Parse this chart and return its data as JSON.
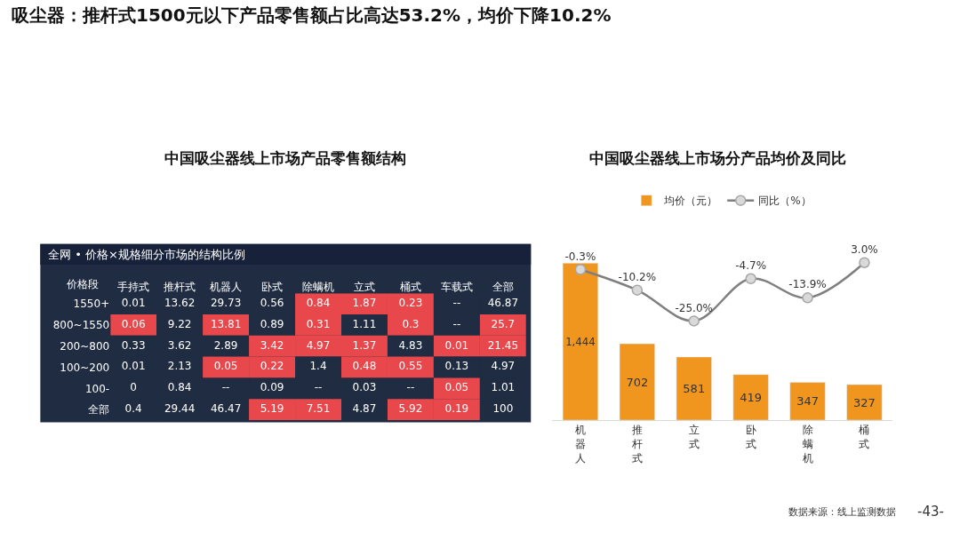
{
  "chart_data": [
    {
      "type": "heatmap",
      "title": "中国吸尘器线上市场产品零售额结构",
      "subtitle": "全网 • 价格×规格细分市场的结构比例",
      "ylabel": "价格段",
      "annotations": [
        "吸尘器：推杆式1500元以下产品零售额占比高达53.2%，均价下降10.2%"
      ],
      "categories": [
        "手持式",
        "推杆式",
        "机器人",
        "卧式",
        "除螨机",
        "立式",
        "桶式",
        "车载式",
        "全部"
      ],
      "y_categories": [
        "1550+",
        "800~1550",
        "200~800",
        "100~200",
        "100-",
        "全部"
      ],
      "cells": [
        [
          0.01,
          13.62,
          29.73,
          0.56,
          0.84,
          1.87,
          0.23,
          null,
          46.87
        ],
        [
          0.06,
          9.22,
          13.81,
          0.89,
          0.31,
          1.11,
          0.3,
          null,
          25.7
        ],
        [
          0.33,
          3.62,
          2.89,
          3.42,
          4.97,
          1.37,
          4.83,
          0.01,
          21.45
        ],
        [
          0.01,
          2.13,
          0.05,
          0.22,
          1.4,
          0.48,
          0.55,
          0.13,
          4.97
        ],
        [
          0,
          0.84,
          null,
          0.09,
          null,
          0.03,
          null,
          0.05,
          1.01
        ],
        [
          0.4,
          29.44,
          46.47,
          5.19,
          7.51,
          4.87,
          5.92,
          0.19,
          100
        ]
      ],
      "cell_labels": [
        [
          "0.01",
          "13.62",
          "29.73",
          "0.56",
          "0.84",
          "1.87",
          "0.23",
          "--",
          "46.87"
        ],
        [
          "0.06",
          "9.22",
          "13.81",
          "0.89",
          "0.31",
          "1.11",
          "0.3",
          "--",
          "25.7"
        ],
        [
          "0.33",
          "3.62",
          "2.89",
          "3.42",
          "4.97",
          "1.37",
          "4.83",
          "0.01",
          "21.45"
        ],
        [
          "0.01",
          "2.13",
          "0.05",
          "0.22",
          "1.4",
          "0.48",
          "0.55",
          "0.13",
          "4.97"
        ],
        [
          "0",
          "0.84",
          "--",
          "0.09",
          "--",
          "0.03",
          "--",
          "0.05",
          "1.01"
        ],
        [
          "0.4",
          "29.44",
          "46.47",
          "5.19",
          "7.51",
          "4.87",
          "5.92",
          "0.19",
          "100"
        ]
      ],
      "colors": [
        [
          "#1f2c42",
          "#1f2c42",
          "#1f2c42",
          "#1f2c42",
          "#e8474b",
          "#e8474b",
          "#e8474b",
          "#1f2c42",
          "#1f2c42"
        ],
        [
          "#e8474b",
          "#1f2c42",
          "#e8474b",
          "#1f2c42",
          "#e8474b",
          "#1f2c42",
          "#e8474b",
          "#1f2c42",
          "#e8474b"
        ],
        [
          "#1f2c42",
          "#1f2c42",
          "#1f2c42",
          "#e8474b",
          "#e8474b",
          "#e8474b",
          "#1f2c42",
          "#e8474b",
          "#e8474b"
        ],
        [
          "#1f2c42",
          "#1f2c42",
          "#e8474b",
          "#e8474b",
          "#1f2c42",
          "#e8474b",
          "#e8474b",
          "#1f2c42",
          "#1f2c42"
        ],
        [
          "#1f2c42",
          "#1f2c42",
          "#1f2c42",
          "#1f2c42",
          "#1f2c42",
          "#1f2c42",
          "#1f2c42",
          "#e8474b",
          "#1f2c42"
        ],
        [
          "#1f2c42",
          "#1f2c42",
          "#1f2c42",
          "#e8474b",
          "#e8474b",
          "#1f2c42",
          "#e8474b",
          "#e8474b",
          "#1f2c42"
        ]
      ]
    },
    {
      "type": "bar",
      "title": "中国吸尘器线上市场分产品均价及同比",
      "legend": "top",
      "tick_labels": "x",
      "annotations": [
        "数据来源：线上监测数据",
        "-43-"
      ],
      "categories": [
        "机器人",
        "推杆式",
        "立式",
        "卧式",
        "除螨机",
        "桶式"
      ],
      "series": [
        {
          "name": "均价（元）",
          "color": "#f0961e",
          "values": [
            1444,
            702,
            581,
            419,
            347,
            327
          ],
          "value_labels": [
            "1,444",
            "702",
            "581",
            "419",
            "347",
            "327"
          ]
        },
        {
          "name": "同比（%）",
          "type": "line",
          "axis": "y2",
          "color": "#7f7f7f",
          "marker": "circle",
          "values": [
            -0.3,
            -10.2,
            -25.0,
            -4.7,
            -13.9,
            3.0
          ],
          "value_labels": [
            "-0.3%",
            "-10.2%",
            "-25.0%",
            "-4.7%",
            "-13.9%",
            "3.0%"
          ]
        }
      ]
    }
  ]
}
